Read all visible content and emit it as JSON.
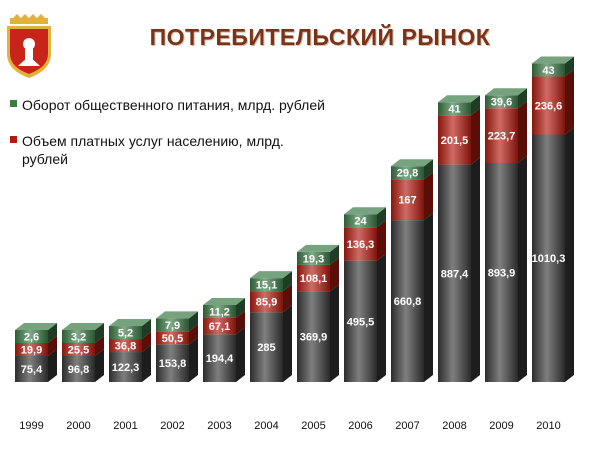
{
  "page": {
    "title": "ПОТРЕБИТЕЛЬСКИЙ РЫНОК"
  },
  "logo": {
    "name": "moscow-oblast-coat-of-arms"
  },
  "colors": {
    "retail": "#3a3a3a",
    "services": "#b41c10",
    "catering": "#3c7a47",
    "emblem_red": "#c8241a",
    "emblem_gold": "#e2b23a"
  },
  "chart_data": {
    "type": "bar",
    "stacked": true,
    "three_d": true,
    "title": "ПОТРЕБИТЕЛЬСКИЙ РЫНОК",
    "xlabel": "",
    "ylabel": "",
    "grid": false,
    "legend_position": "top-left",
    "categories": [
      "1999",
      "2000",
      "2001",
      "2002",
      "2003",
      "2004",
      "2005",
      "2006",
      "2007",
      "2008",
      "2009",
      "2010"
    ],
    "series": [
      {
        "values": [
          75.4,
          96.8,
          122.3,
          153.8,
          194.4,
          285,
          369.9,
          495.5,
          660.8,
          887.4,
          893.9,
          1010.3
        ],
        "labels": [
          "75,4",
          "96,8",
          "122,3",
          "153,8",
          "194,4",
          "285",
          "369,9",
          "495,5",
          "660,8",
          "887,4",
          "893,9",
          "1010,3"
        ]
      },
      {
        "name": "Объем платных услуг населению, млрд. рублей",
        "values": [
          19.9,
          25.5,
          36.8,
          50.5,
          67.1,
          85.9,
          108.1,
          136.3,
          167,
          201.5,
          223.7,
          236.6
        ],
        "labels": [
          "19,9",
          "25,5",
          "36,8",
          "50,5",
          "67,1",
          "85,9",
          "108,1",
          "136,3",
          "167",
          "201,5",
          "223,7",
          "236,6"
        ]
      },
      {
        "name": "Оборот общественного питания, млрд. рублей",
        "values": [
          2.6,
          3.2,
          5.2,
          7.9,
          11.2,
          15.1,
          19.3,
          24,
          29.8,
          41,
          39.6,
          43
        ],
        "labels": [
          "2,6",
          "3,2",
          "5,2",
          "7,9",
          "11,2",
          "15,1",
          "19,3",
          "24",
          "29,8",
          "41",
          "39,6",
          "43"
        ]
      }
    ]
  }
}
